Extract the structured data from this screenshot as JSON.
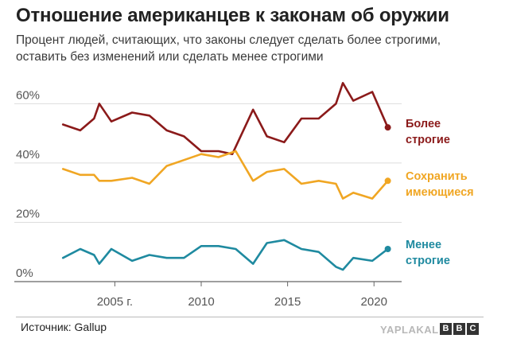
{
  "title": "Отношение американцев к законам об оружии",
  "subtitle": "Процент людей, считающих, что законы следует сделать более строгими, оставить без изменений или сделать менее строгими",
  "source": "Источник: Gallup",
  "watermark": "YAPLAKAL",
  "bbc_letters": [
    "B",
    "B",
    "C"
  ],
  "chart_data": {
    "type": "line",
    "xlim": [
      2001.3,
      2021.6
    ],
    "ylim": [
      0,
      66
    ],
    "yticks": [
      {
        "value": 0,
        "label": "0%"
      },
      {
        "value": 20,
        "label": "20%"
      },
      {
        "value": 40,
        "label": "40%"
      },
      {
        "value": 60,
        "label": "60%"
      }
    ],
    "xticks": [
      {
        "value": 2005,
        "label": "2005 г."
      },
      {
        "value": 2010,
        "label": "2010"
      },
      {
        "value": 2015,
        "label": "2015"
      },
      {
        "value": 2020,
        "label": "2020"
      }
    ],
    "grid": true,
    "series": [
      {
        "name": "Более строгие",
        "label_lines": [
          "Более",
          "строгие"
        ],
        "color": "#8b1a1a",
        "points": [
          [
            2002,
            53
          ],
          [
            2003,
            51
          ],
          [
            2003.8,
            55
          ],
          [
            2004.1,
            60
          ],
          [
            2004.8,
            54
          ],
          [
            2006,
            57
          ],
          [
            2007,
            56
          ],
          [
            2008,
            51
          ],
          [
            2009,
            49
          ],
          [
            2010,
            44
          ],
          [
            2011,
            44
          ],
          [
            2011.8,
            43
          ],
          [
            2013,
            58
          ],
          [
            2013.8,
            49
          ],
          [
            2014.8,
            47
          ],
          [
            2015.8,
            55
          ],
          [
            2016.8,
            55
          ],
          [
            2017.8,
            60
          ],
          [
            2018.2,
            67
          ],
          [
            2018.8,
            61
          ],
          [
            2019.9,
            64
          ],
          [
            2020.8,
            52
          ]
        ]
      },
      {
        "name": "Сохранить имеющиеся",
        "label_lines": [
          "Сохранить",
          "имеющиеся"
        ],
        "color": "#f0a623",
        "points": [
          [
            2002,
            38
          ],
          [
            2003,
            36
          ],
          [
            2003.8,
            36
          ],
          [
            2004.1,
            34
          ],
          [
            2004.8,
            34
          ],
          [
            2006,
            35
          ],
          [
            2007,
            33
          ],
          [
            2008,
            39
          ],
          [
            2009,
            41
          ],
          [
            2010,
            43
          ],
          [
            2011,
            42
          ],
          [
            2012,
            44
          ],
          [
            2013,
            34
          ],
          [
            2013.8,
            37
          ],
          [
            2014.8,
            38
          ],
          [
            2015.8,
            33
          ],
          [
            2016.8,
            34
          ],
          [
            2017.8,
            33
          ],
          [
            2018.2,
            28
          ],
          [
            2018.8,
            30
          ],
          [
            2019.9,
            28
          ],
          [
            2020.8,
            34
          ]
        ]
      },
      {
        "name": "Менее строгие",
        "label_lines": [
          "Менее",
          "строгие"
        ],
        "color": "#1f8aa0",
        "points": [
          [
            2002,
            8
          ],
          [
            2003,
            11
          ],
          [
            2003.8,
            9
          ],
          [
            2004.1,
            6
          ],
          [
            2004.8,
            11
          ],
          [
            2006,
            7
          ],
          [
            2007,
            9
          ],
          [
            2008,
            8
          ],
          [
            2009,
            8
          ],
          [
            2010,
            12
          ],
          [
            2011,
            12
          ],
          [
            2012,
            11
          ],
          [
            2013,
            6
          ],
          [
            2013.8,
            13
          ],
          [
            2014.8,
            14
          ],
          [
            2015.8,
            11
          ],
          [
            2016.8,
            10
          ],
          [
            2017.8,
            5
          ],
          [
            2018.2,
            4
          ],
          [
            2018.8,
            8
          ],
          [
            2019.9,
            7
          ],
          [
            2020.8,
            11
          ]
        ]
      }
    ]
  }
}
